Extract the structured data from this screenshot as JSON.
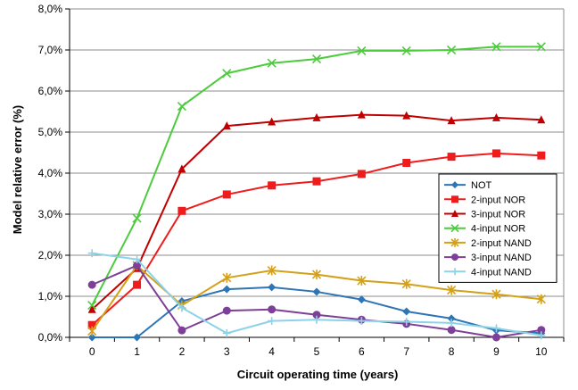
{
  "chart_data": {
    "type": "line",
    "xlabel": "Circuit operating time (years)",
    "ylabel": "Model relative error (%)",
    "x": [
      0,
      1,
      2,
      3,
      4,
      5,
      6,
      7,
      8,
      9,
      10
    ],
    "x_tick_labels": [
      "0",
      "1",
      "2",
      "3",
      "4",
      "5",
      "6",
      "7",
      "8",
      "9",
      "10"
    ],
    "ylim": [
      0,
      8
    ],
    "y_ticks": [
      0,
      1,
      2,
      3,
      4,
      5,
      6,
      7,
      8
    ],
    "y_tick_labels": [
      "0,0%",
      "1,0%",
      "2,0%",
      "3,0%",
      "4,0%",
      "5,0%",
      "6,0%",
      "7,0%",
      "8,0%"
    ],
    "grid": "horizontal",
    "legend_position": "right",
    "series": [
      {
        "name": "NOT",
        "color": "#2E75B6",
        "marker": "diamond",
        "values": [
          0.0,
          0.0,
          0.88,
          1.17,
          1.22,
          1.11,
          0.92,
          0.63,
          0.46,
          0.17,
          0.1
        ]
      },
      {
        "name": "2-input NOR",
        "color": "#EE1C1C",
        "marker": "square",
        "values": [
          0.3,
          1.28,
          3.08,
          3.48,
          3.7,
          3.8,
          3.98,
          4.25,
          4.4,
          4.48,
          4.43
        ]
      },
      {
        "name": "3-input NOR",
        "color": "#C00000",
        "marker": "triangle",
        "values": [
          0.68,
          1.68,
          4.1,
          5.15,
          5.25,
          5.35,
          5.42,
          5.4,
          5.28,
          5.35,
          5.3
        ]
      },
      {
        "name": "4-input NOR",
        "color": "#4CCB3C",
        "marker": "x",
        "values": [
          0.78,
          2.9,
          5.63,
          6.43,
          6.68,
          6.78,
          6.98,
          6.98,
          7.0,
          7.08,
          7.08
        ]
      },
      {
        "name": "2-input NAND",
        "color": "#D4A017",
        "marker": "star",
        "values": [
          0.15,
          1.75,
          0.78,
          1.45,
          1.63,
          1.53,
          1.38,
          1.3,
          1.15,
          1.05,
          0.93
        ]
      },
      {
        "name": "3-input NAND",
        "color": "#7E3F98",
        "marker": "circle",
        "values": [
          1.28,
          1.75,
          0.17,
          0.65,
          0.68,
          0.55,
          0.43,
          0.33,
          0.18,
          0.0,
          0.18
        ]
      },
      {
        "name": "4-input NAND",
        "color": "#8CD3E8",
        "marker": "plus",
        "values": [
          2.05,
          1.9,
          0.72,
          0.1,
          0.4,
          0.43,
          0.4,
          0.38,
          0.35,
          0.22,
          0.05
        ]
      }
    ]
  }
}
